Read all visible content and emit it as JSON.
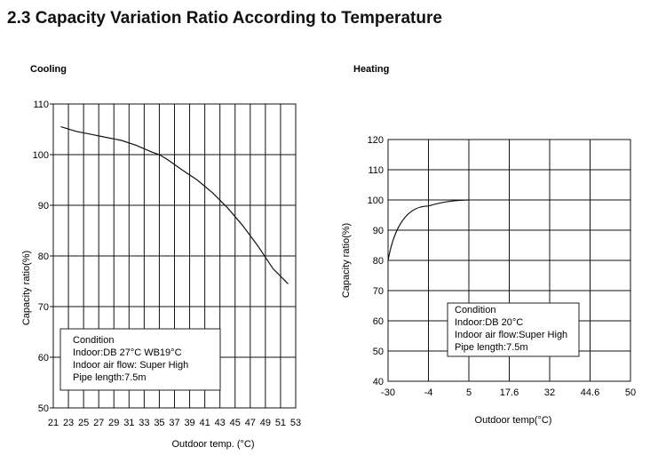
{
  "page_title": "2.3 Capacity Variation Ratio According to Temperature",
  "chart_data": [
    {
      "type": "line",
      "title": "Cooling",
      "xlabel": "Outdoor temp. (°C)",
      "ylabel": "Capacity ratio(%)",
      "x_ticks": [
        21,
        23,
        25,
        27,
        29,
        31,
        33,
        35,
        37,
        39,
        41,
        43,
        45,
        47,
        49,
        51,
        53
      ],
      "y_ticks": [
        50,
        60,
        70,
        80,
        90,
        100,
        110
      ],
      "xlim": [
        21,
        53
      ],
      "ylim": [
        50,
        110
      ],
      "grid": true,
      "series": [
        {
          "x": [
            22,
            24,
            26,
            28,
            30,
            32,
            34,
            35,
            36,
            38,
            40,
            42,
            44,
            46,
            48,
            50,
            52
          ],
          "y": [
            105.5,
            104.6,
            104.0,
            103.4,
            102.8,
            101.8,
            100.5,
            100.0,
            99.1,
            97.0,
            95.0,
            92.5,
            89.5,
            86.0,
            82.0,
            77.5,
            74.5
          ]
        }
      ],
      "annotation": [
        "Condition",
        "Indoor:DB 27°C  WB19°C",
        "Indoor air flow: Super High",
        "Pipe length:7.5m"
      ]
    },
    {
      "type": "line",
      "title": "Heating",
      "xlabel": "Outdoor temp(°C)",
      "ylabel": "Capacity ratio(%)",
      "x_ticks": [
        "-30",
        "-4",
        "5",
        "17.6",
        "32",
        "44.6",
        "50"
      ],
      "y_ticks": [
        40,
        50,
        60,
        70,
        80,
        90,
        100,
        110,
        120
      ],
      "ylim": [
        40,
        120
      ],
      "grid": true,
      "series": [
        {
          "x": [
            "-30",
            "-4",
            "5"
          ],
          "y": [
            80,
            98,
            100
          ]
        }
      ],
      "annotation": [
        "Condition",
        "Indoor:DB 20°C",
        "Indoor air flow:Super High",
        "Pipe length:7.5m"
      ]
    }
  ]
}
